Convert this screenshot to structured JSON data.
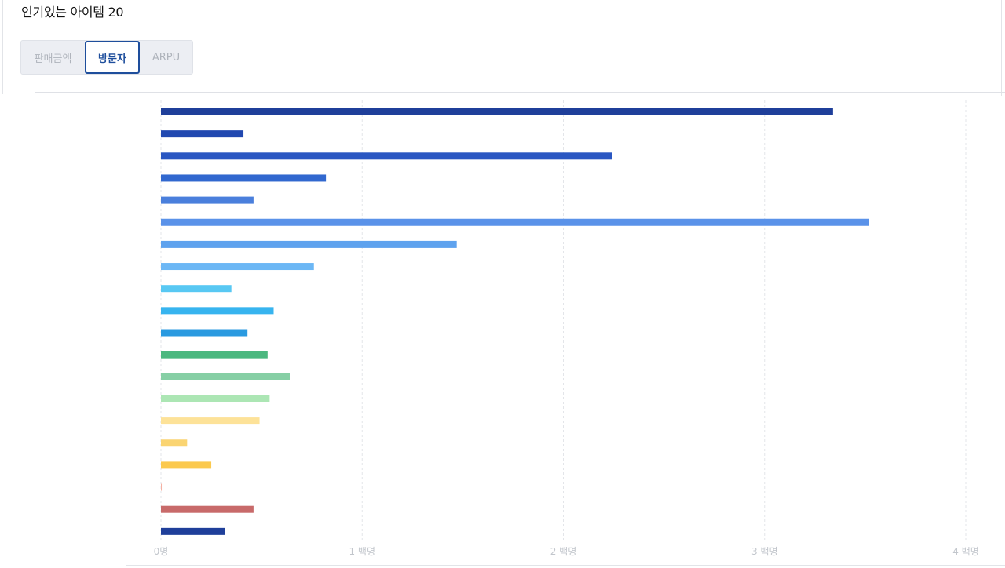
{
  "page": {
    "title": "인기있는 아이템 20"
  },
  "tabs": [
    {
      "label": "판매금액",
      "active": false
    },
    {
      "label": "방문자",
      "active": true
    },
    {
      "label": "ARPU",
      "active": false
    }
  ],
  "colors": {
    "active_tab": "#1e4e9c",
    "tab_background": "#eceef3",
    "tab_inactive_text": "#aeb3bb",
    "gridline": "#e3e5e9",
    "tick_label": "#c2c6cc"
  },
  "chart_data": {
    "type": "bar",
    "orientation": "horizontal",
    "x_ticks": [
      "0명",
      "1 백명",
      "2 백명",
      "3 백명",
      "4 백명"
    ],
    "xlim": [
      0,
      400
    ],
    "grid": true,
    "values": [
      334,
      41,
      224,
      82,
      46,
      352,
      147,
      76,
      35,
      56,
      43,
      53,
      64,
      54,
      49,
      13,
      25,
      0.4,
      46,
      32
    ],
    "colors": [
      "#1f3f9a",
      "#2148b0",
      "#2a57c2",
      "#3168cf",
      "#4a7fdc",
      "#5a92e9",
      "#5ea2ee",
      "#6cb7f5",
      "#58c8f3",
      "#37b4ef",
      "#2a9ae0",
      "#4bb87f",
      "#86cfa5",
      "#ace6b4",
      "#fde298",
      "#fad472",
      "#fbc94e",
      "#f6b1a3",
      "#c86a6a",
      "#1f3f9a"
    ]
  }
}
